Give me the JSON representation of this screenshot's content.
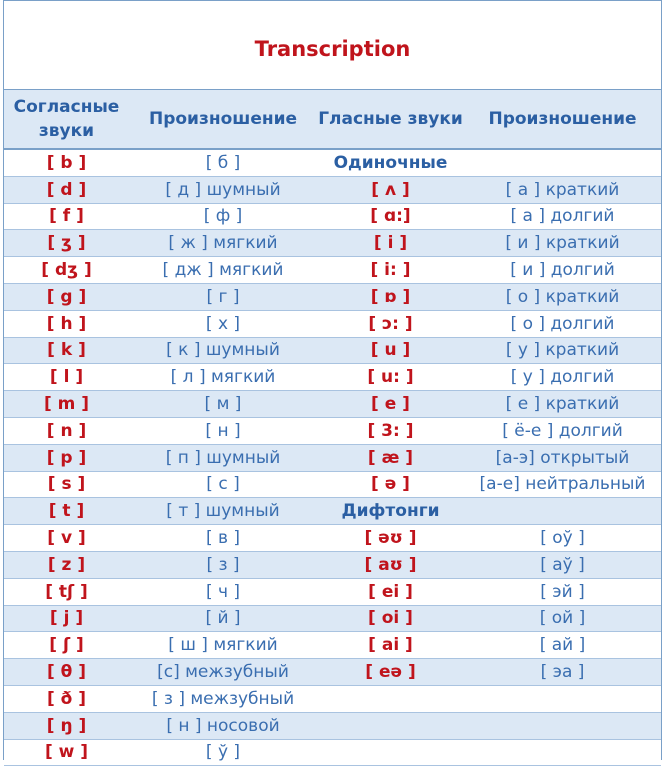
{
  "title": "Transcription",
  "headers": [
    "Согласные звуки",
    "Произношение",
    "Гласные звуки",
    "Произношение"
  ],
  "rows": [
    [
      "[ b ]",
      "[ б ]",
      "Одиночные",
      ""
    ],
    [
      "[ d ]",
      "[ д ] шумный",
      "[ ʌ ]",
      "[ а ] краткий"
    ],
    [
      "[ f ]",
      "[ ф ]",
      "[ ɑ:]",
      "[ а ] долгий"
    ],
    [
      "[ ʒ ]",
      "[ ж ] мягкий",
      "[ i ]",
      "[ и ]  краткий"
    ],
    [
      "[ dʒ ]",
      "[ дж ]  мягкий",
      "[ i: ]",
      "[ и ] долгий"
    ],
    [
      "[ g ]",
      "[ г ]",
      "[ ɒ ]",
      "[ о ]  краткий"
    ],
    [
      "[ h ]",
      "[ х ]",
      "[ ɔ: ]",
      "[ о ] долгий"
    ],
    [
      "[ k ]",
      "[ к ] шумный",
      "[ u ]",
      "[ у ]  краткий"
    ],
    [
      "[ l ]",
      "[ л ] мягкий",
      "[ u: ]",
      "[ у ] долгий"
    ],
    [
      "[ m ]",
      "[ м ]",
      "[ e ]",
      "[ е ] краткий"
    ],
    [
      "[ n ]",
      "[ н ]",
      "[ 3: ]",
      "[ ё-е ] долгий"
    ],
    [
      "[ p ]",
      "[ п ] шумный",
      "[ æ ]",
      "[а-э] открытый"
    ],
    [
      "[ s ]",
      "[ с ]",
      "[ ə ]",
      "[а-е] нейтральный"
    ],
    [
      "[ t ]",
      "[ т ]  шумный",
      "Дифтонги",
      ""
    ],
    [
      "[ v ]",
      "[ в ]",
      "[ əʊ ]",
      "[ оў ]"
    ],
    [
      "[ z ]",
      "[ з ]",
      "[ aʊ ]",
      "[ аў ]"
    ],
    [
      "[ tʃ ]",
      "[ ч ]",
      "[ ei ]",
      "[ эй ]"
    ],
    [
      "[ j ]",
      "[ й ]",
      "[ oi ]",
      "[ ой ]"
    ],
    [
      "[ ʃ ]",
      "[ ш ] мягкий",
      "[ ai ]",
      "[ ай ]"
    ],
    [
      "[ θ ]",
      "[с] межзубный",
      "[ eə ]",
      "[ эа ]"
    ],
    [
      "[ ð ]",
      "[ з ] межзубный",
      "",
      ""
    ],
    [
      "[ ŋ ]",
      "[ н ] носовой",
      "",
      ""
    ],
    [
      "[ w ]",
      "[ ў ]",
      "",
      ""
    ]
  ],
  "colors": {
    "accent_red": "#c0141c",
    "header_blue": "#2b5fa3",
    "text_blue": "#3a6eb0",
    "stripe": "#dce8f5",
    "border": "#7aa0c8"
  }
}
